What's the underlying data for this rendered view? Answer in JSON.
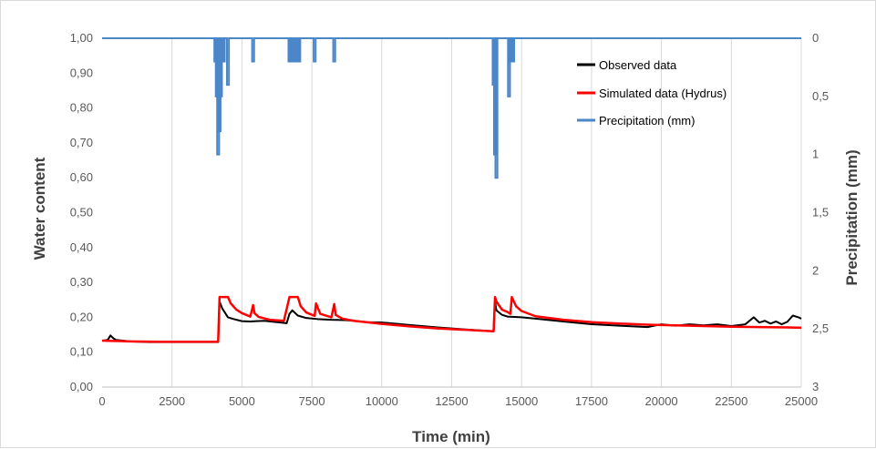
{
  "chart_data": {
    "type": "line",
    "title": "",
    "xlabel": "Time (min)",
    "ylabel": "Water content",
    "y2label": "Precipitation (mm)",
    "xlim": [
      0,
      25000
    ],
    "ylim": [
      0,
      1.0
    ],
    "y2lim": [
      0,
      3
    ],
    "y2_inverted": true,
    "x_ticks": [
      "0",
      "2500",
      "5000",
      "7500",
      "10000",
      "12500",
      "15000",
      "17500",
      "20000",
      "22500",
      "25000"
    ],
    "y_ticks": [
      "0,00",
      "0,10",
      "0,20",
      "0,30",
      "0,40",
      "0,50",
      "0,60",
      "0,70",
      "0,80",
      "0,90",
      "1,00"
    ],
    "y2_ticks": [
      "0",
      "0,5",
      "1",
      "1,5",
      "2",
      "2,5",
      "3"
    ],
    "grid": "vertical",
    "legend_position": "top-right",
    "colors": {
      "observed": "#000000",
      "simulated": "#ff0000",
      "precipitation": "#4a86c8",
      "grid": "#d9d9d9"
    },
    "series": [
      {
        "name": "Observed data",
        "axis": "left",
        "x": [
          0,
          200,
          300,
          400,
          500,
          1000,
          1700,
          2500,
          3500,
          4150,
          4200,
          4300,
          4500,
          4700,
          5000,
          5300,
          5500,
          5800,
          6600,
          6700,
          6800,
          7000,
          7300,
          7700,
          8200,
          8700,
          9500,
          10000,
          10300,
          11000,
          12000,
          13000,
          14000,
          14050,
          14100,
          14300,
          14500,
          15000,
          15500,
          16500,
          17500,
          18500,
          19500,
          20000,
          20500,
          21000,
          21500,
          22000,
          22500,
          23000,
          23300,
          23500,
          23700,
          23900,
          24100,
          24300,
          24500,
          24700,
          24900,
          25000
        ],
        "y": [
          0.133,
          0.135,
          0.148,
          0.14,
          0.135,
          0.131,
          0.129,
          0.129,
          0.129,
          0.129,
          0.245,
          0.225,
          0.2,
          0.195,
          0.189,
          0.188,
          0.189,
          0.19,
          0.183,
          0.21,
          0.22,
          0.205,
          0.198,
          0.195,
          0.193,
          0.192,
          0.186,
          0.185,
          0.183,
          0.178,
          0.171,
          0.165,
          0.16,
          0.245,
          0.22,
          0.207,
          0.202,
          0.2,
          0.196,
          0.188,
          0.18,
          0.176,
          0.172,
          0.18,
          0.176,
          0.18,
          0.177,
          0.18,
          0.175,
          0.18,
          0.2,
          0.185,
          0.19,
          0.182,
          0.188,
          0.18,
          0.187,
          0.205,
          0.2,
          0.196
        ]
      },
      {
        "name": "Simulated data (Hydrus)",
        "axis": "left",
        "x": [
          0,
          1000,
          2000,
          3000,
          4000,
          4150,
          4200,
          4300,
          4500,
          4600,
          4800,
          5000,
          5300,
          5400,
          5450,
          5600,
          5900,
          6000,
          6500,
          6700,
          6800,
          7000,
          7100,
          7300,
          7600,
          7650,
          7800,
          8200,
          8300,
          8350,
          8600,
          9000,
          10000,
          11000,
          12000,
          13000,
          14000,
          14050,
          14100,
          14300,
          14500,
          14600,
          14650,
          14800,
          15000,
          15500,
          16500,
          17500,
          18500,
          19500,
          20500,
          21500,
          22500,
          23500,
          24500,
          25000
        ],
        "y": [
          0.133,
          0.131,
          0.13,
          0.13,
          0.13,
          0.13,
          0.258,
          0.258,
          0.258,
          0.24,
          0.222,
          0.212,
          0.202,
          0.235,
          0.212,
          0.201,
          0.195,
          0.193,
          0.19,
          0.258,
          0.258,
          0.258,
          0.232,
          0.214,
          0.204,
          0.24,
          0.21,
          0.2,
          0.238,
          0.207,
          0.196,
          0.19,
          0.181,
          0.174,
          0.168,
          0.164,
          0.16,
          0.258,
          0.245,
          0.222,
          0.215,
          0.21,
          0.258,
          0.232,
          0.218,
          0.203,
          0.193,
          0.186,
          0.182,
          0.179,
          0.177,
          0.175,
          0.173,
          0.172,
          0.171,
          0.17
        ]
      },
      {
        "name": "Precipitation (mm)",
        "axis": "right",
        "x": [
          4050,
          4100,
          4150,
          4200,
          4250,
          4300,
          4350,
          4500,
          5400,
          6700,
          6750,
          6800,
          6850,
          6900,
          6950,
          7000,
          7050,
          7600,
          8300,
          14000,
          14050,
          14100,
          14550,
          14600,
          14650,
          14700
        ],
        "y": [
          0.2,
          0.5,
          1.0,
          0.8,
          0.5,
          0.2,
          0.2,
          0.4,
          0.2,
          0.2,
          0.2,
          0.2,
          0.2,
          0.2,
          0.2,
          0.2,
          0.2,
          0.2,
          0.2,
          0.4,
          1.0,
          1.2,
          0.5,
          0.2,
          0.2,
          0.2
        ]
      }
    ]
  }
}
